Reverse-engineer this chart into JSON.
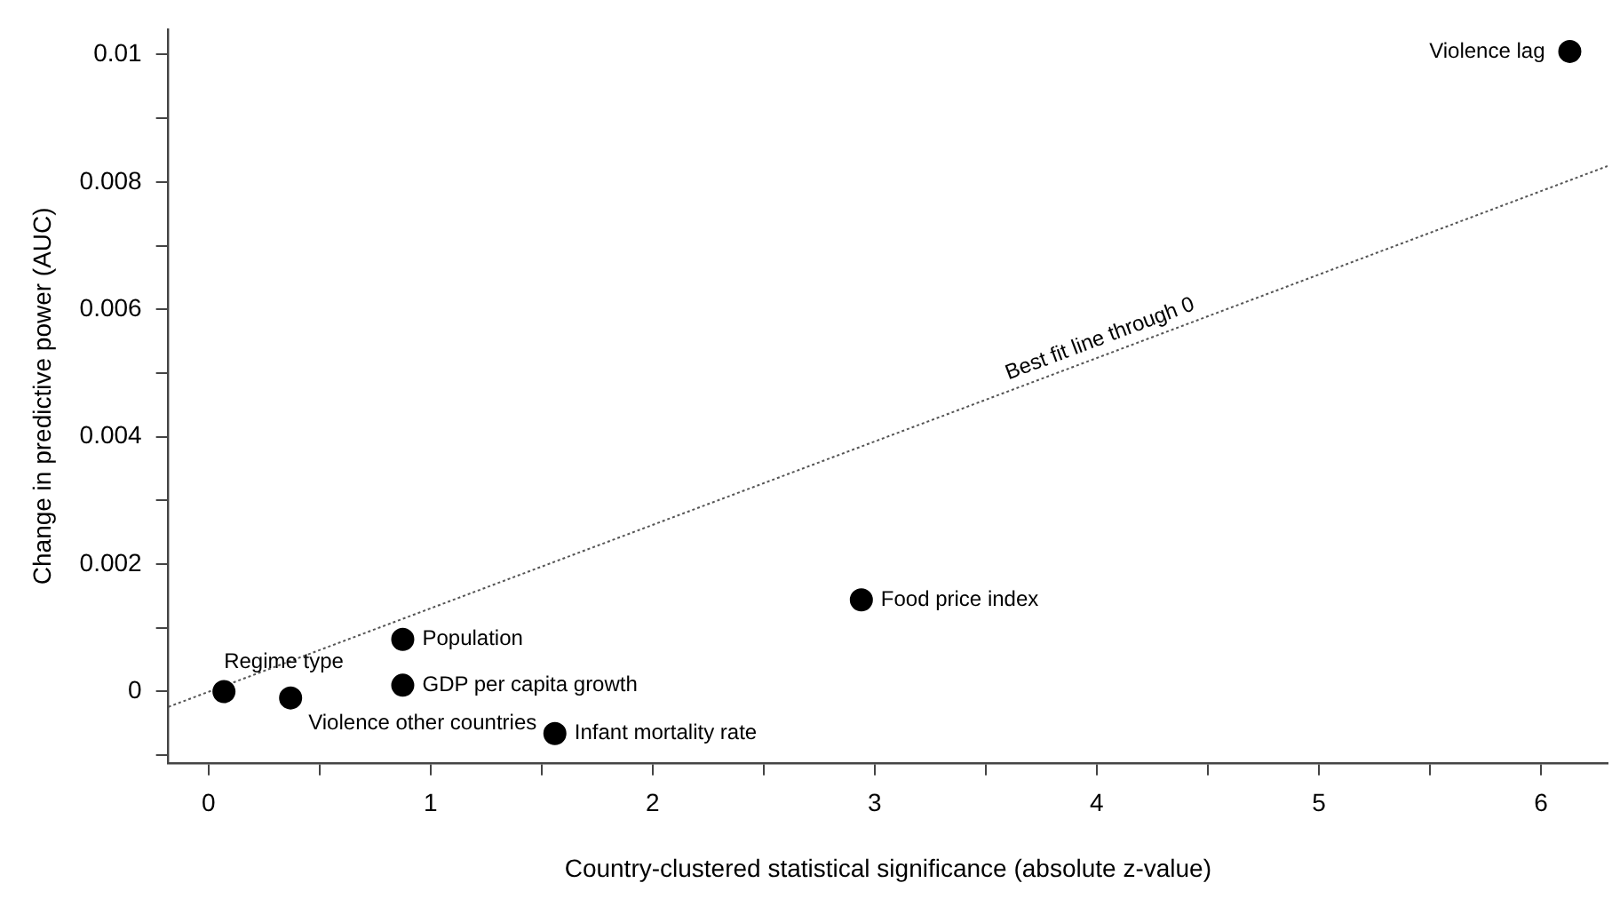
{
  "chart_data": {
    "type": "scatter",
    "xlabel": "Country-clustered statistical significance (absolute z-value)",
    "ylabel": "Change in predictive power (AUC)",
    "marker": "circle",
    "series": [
      {
        "color": "#000000",
        "x": [
          6.13,
          2.94,
          0.875,
          0.875,
          1.56,
          0.07,
          0.37
        ],
        "values": [
          0.01005,
          0.00144,
          0.00082,
          0.0001,
          -0.00066,
          0,
          -0.0001
        ]
      },
      {
        "type": "line",
        "color": "#555555",
        "line_style": "dotted",
        "marker": "none",
        "x": [
          -0.18,
          6.3
        ],
        "values": [
          -0.00024,
          0.00825
        ]
      }
    ],
    "xlim": [
      -0.18,
      6.3
    ],
    "ylim": [
      -0.00112,
      0.0104
    ],
    "xticks": [
      0,
      {
        "value": 0.5,
        "label": null
      },
      1,
      {
        "value": 1.5,
        "label": null
      },
      2,
      {
        "value": 2.5,
        "label": null
      },
      3,
      {
        "value": 3.5,
        "label": null
      },
      4,
      {
        "value": 4.5,
        "label": null
      },
      5,
      {
        "value": 5.5,
        "label": null
      },
      6
    ],
    "yticks": [
      {
        "value": -0.001,
        "label": null
      },
      0,
      {
        "value": 0.001,
        "label": null
      },
      0.002,
      {
        "value": 0.003,
        "label": null
      },
      0.004,
      {
        "value": 0.005,
        "label": null
      },
      0.006,
      {
        "value": 0.007,
        "label": null
      },
      0.008,
      {
        "value": 0.009,
        "label": null
      },
      0.01
    ],
    "grid": false,
    "legend": false,
    "annotations": [
      {
        "text": "Violence lag",
        "x": 6.13,
        "y": 0.01005
      },
      {
        "text": "Food price index",
        "x": 2.94,
        "y": 0.00144
      },
      {
        "text": "Population",
        "x": 0.875,
        "y": 0.00082
      },
      {
        "text": "GDP per capita growth",
        "x": 0.875,
        "y": 0.0001
      },
      {
        "text": "Infant mortality rate",
        "x": 1.56,
        "y": -0.00066
      },
      {
        "text": "Regime type",
        "x": 0.07,
        "y": 0
      },
      {
        "text": "Violence other countries",
        "x": 0.37,
        "y": -0.0001
      },
      {
        "text": "Best fit line through 0",
        "x": 4.04,
        "y": 0.0053
      }
    ]
  }
}
